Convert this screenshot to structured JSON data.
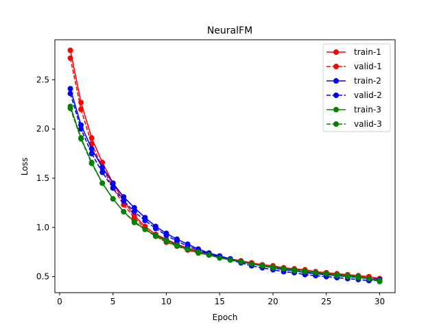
{
  "chart_data": {
    "type": "line",
    "title": "NeuralFM",
    "xlabel": "Epoch",
    "ylabel": "Loss",
    "xlim": [
      -0.45,
      31.45
    ],
    "ylim": [
      0.337,
      2.907
    ],
    "xticks": [
      0,
      5,
      10,
      15,
      20,
      25,
      30
    ],
    "yticks": [
      0.5,
      1.0,
      1.5,
      2.0,
      2.5
    ],
    "xtick_labels": [
      "0",
      "5",
      "10",
      "15",
      "20",
      "25",
      "30"
    ],
    "ytick_labels": [
      "0.5",
      "1.0",
      "1.5",
      "2.0",
      "2.5"
    ],
    "legend_position": "top-right",
    "x": [
      1,
      2,
      3,
      4,
      5,
      6,
      7,
      8,
      9,
      10,
      11,
      12,
      13,
      14,
      15,
      16,
      17,
      18,
      19,
      20,
      21,
      22,
      23,
      24,
      25,
      26,
      27,
      28,
      29,
      30
    ],
    "series": [
      {
        "name": "train-1",
        "color": "#ff0000",
        "dash": "solid",
        "values": [
          2.8,
          2.27,
          1.91,
          1.66,
          1.45,
          1.27,
          1.12,
          1.01,
          0.93,
          0.88,
          0.83,
          0.79,
          0.76,
          0.73,
          0.7,
          0.68,
          0.66,
          0.64,
          0.62,
          0.61,
          0.59,
          0.58,
          0.57,
          0.55,
          0.54,
          0.53,
          0.52,
          0.51,
          0.5,
          0.48
        ]
      },
      {
        "name": "valid-1",
        "color": "#ff0000",
        "dash": "dashed",
        "values": [
          2.72,
          2.2,
          1.85,
          1.61,
          1.4,
          1.23,
          1.1,
          0.99,
          0.91,
          0.85,
          0.81,
          0.77,
          0.74,
          0.72,
          0.7,
          0.68,
          0.66,
          0.64,
          0.62,
          0.6,
          0.59,
          0.57,
          0.56,
          0.55,
          0.54,
          0.52,
          0.51,
          0.5,
          0.49,
          0.48
        ]
      },
      {
        "name": "train-2",
        "color": "#0000ff",
        "dash": "solid",
        "values": [
          2.41,
          2.04,
          1.8,
          1.61,
          1.45,
          1.31,
          1.2,
          1.1,
          1.01,
          0.94,
          0.88,
          0.83,
          0.78,
          0.74,
          0.71,
          0.68,
          0.65,
          0.63,
          0.61,
          0.59,
          0.57,
          0.56,
          0.54,
          0.53,
          0.52,
          0.51,
          0.5,
          0.49,
          0.48,
          0.47
        ]
      },
      {
        "name": "valid-2",
        "color": "#0000ff",
        "dash": "dashed",
        "values": [
          2.36,
          2.0,
          1.75,
          1.56,
          1.4,
          1.27,
          1.16,
          1.07,
          0.99,
          0.92,
          0.86,
          0.81,
          0.77,
          0.73,
          0.7,
          0.67,
          0.64,
          0.61,
          0.59,
          0.57,
          0.55,
          0.54,
          0.52,
          0.51,
          0.5,
          0.49,
          0.48,
          0.47,
          0.46,
          0.46
        ]
      },
      {
        "name": "train-3",
        "color": "#008000",
        "dash": "solid",
        "values": [
          2.23,
          1.91,
          1.66,
          1.45,
          1.29,
          1.16,
          1.06,
          0.98,
          0.92,
          0.87,
          0.82,
          0.78,
          0.75,
          0.72,
          0.69,
          0.67,
          0.65,
          0.63,
          0.61,
          0.6,
          0.58,
          0.57,
          0.56,
          0.54,
          0.53,
          0.52,
          0.51,
          0.5,
          0.48,
          0.46
        ]
      },
      {
        "name": "valid-3",
        "color": "#008000",
        "dash": "dashed",
        "values": [
          2.21,
          1.9,
          1.65,
          1.45,
          1.29,
          1.16,
          1.05,
          0.98,
          0.91,
          0.86,
          0.81,
          0.78,
          0.74,
          0.72,
          0.69,
          0.67,
          0.65,
          0.63,
          0.61,
          0.59,
          0.58,
          0.56,
          0.55,
          0.54,
          0.53,
          0.51,
          0.5,
          0.49,
          0.48,
          0.45
        ]
      }
    ]
  }
}
